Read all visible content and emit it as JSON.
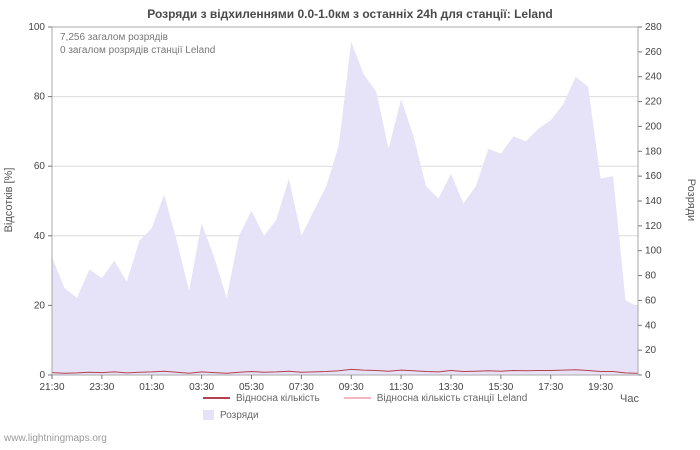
{
  "watermark": "www.lightningmaps.org",
  "chart_data": {
    "type": "area",
    "title": "Розряди з відхиленнями 0.0-1.0км з останніх 24h для станції: Leland",
    "annotations": [
      "7,256 загалом розрядів",
      "0 загалом розрядів станції Leland"
    ],
    "xlabel": "Час",
    "ylabel_left": "Відсотків  [%]",
    "ylabel_right": "Розряди",
    "ylim_left": [
      0,
      100
    ],
    "ylim_right": [
      0,
      280
    ],
    "yticks_left_step": 20,
    "yticks_right_step": 20,
    "grid": true,
    "legend_position": "bottom",
    "tick_every": 4,
    "x": [
      "21:30",
      "22:00",
      "22:30",
      "23:00",
      "23:30",
      "00:00",
      "00:30",
      "01:00",
      "01:30",
      "02:00",
      "02:30",
      "03:00",
      "03:30",
      "04:00",
      "04:30",
      "05:00",
      "05:30",
      "06:00",
      "06:30",
      "07:00",
      "07:30",
      "08:00",
      "08:30",
      "09:00",
      "09:30",
      "10:00",
      "10:30",
      "11:00",
      "11:30",
      "12:00",
      "12:30",
      "13:00",
      "13:30",
      "14:00",
      "14:30",
      "15:00",
      "15:30",
      "16:00",
      "16:30",
      "17:00",
      "17:30",
      "18:00",
      "18:30",
      "19:00",
      "19:30",
      "20:00",
      "20:30",
      "21:00"
    ],
    "series": [
      {
        "name": "Розряди",
        "type": "area",
        "axis": "right",
        "color": "#e6e3f8",
        "values": [
          95,
          70,
          62,
          85,
          78,
          92,
          75,
          108,
          118,
          145,
          108,
          68,
          122,
          95,
          62,
          112,
          132,
          112,
          125,
          158,
          112,
          132,
          152,
          185,
          268,
          242,
          228,
          182,
          222,
          192,
          152,
          142,
          162,
          138,
          152,
          182,
          178,
          192,
          188,
          198,
          205,
          218,
          240,
          232,
          158,
          160,
          60,
          55
        ]
      },
      {
        "name": "Відносна кількість",
        "type": "line",
        "axis": "left",
        "color": "#b5404e",
        "values": [
          0.7,
          0.5,
          0.6,
          0.8,
          0.7,
          0.9,
          0.6,
          0.8,
          0.9,
          1.1,
          0.8,
          0.5,
          0.9,
          0.7,
          0.5,
          0.8,
          1.0,
          0.8,
          0.9,
          1.1,
          0.8,
          0.9,
          1.0,
          1.2,
          1.6,
          1.4,
          1.3,
          1.1,
          1.4,
          1.2,
          1.0,
          0.9,
          1.3,
          1.0,
          1.1,
          1.2,
          1.1,
          1.3,
          1.2,
          1.3,
          1.3,
          1.4,
          1.5,
          1.3,
          1.0,
          1.0,
          0.6,
          0.5
        ]
      },
      {
        "name": "Відносна кількість станції Leland",
        "type": "line",
        "axis": "left",
        "color": "#f4b8c0",
        "values": [
          0,
          0,
          0,
          0,
          0,
          0,
          0,
          0,
          0,
          0,
          0,
          0,
          0,
          0,
          0,
          0,
          0,
          0,
          0,
          0,
          0,
          0,
          0,
          0,
          0,
          0,
          0,
          0,
          0,
          0,
          0,
          0,
          0,
          0,
          0,
          0,
          0,
          0,
          0,
          0,
          0,
          0,
          0,
          0,
          0,
          0,
          0,
          0
        ]
      }
    ]
  }
}
